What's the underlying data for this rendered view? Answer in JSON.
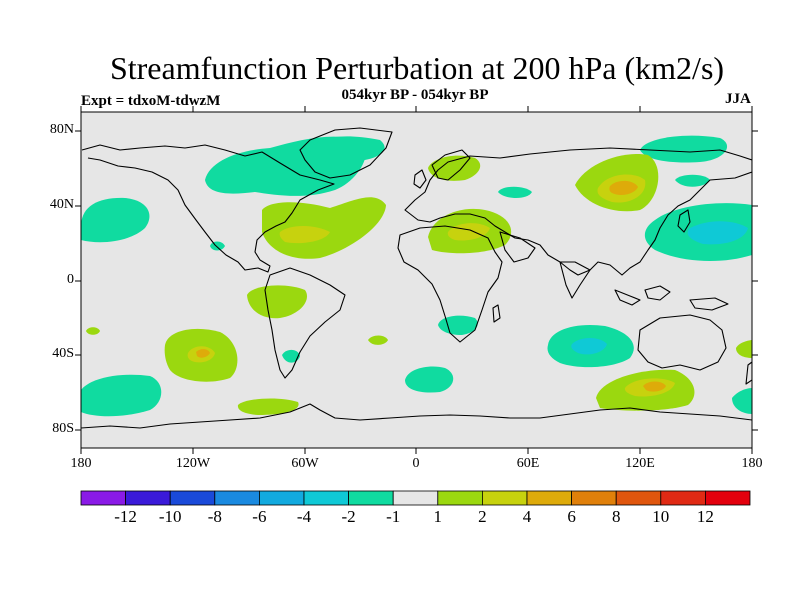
{
  "title": "Streamfunction Perturbation at 200 hPa (km2/s)",
  "subtitle": "054kyr BP - 054kyr BP",
  "experiment": "Expt = tdxoM-tdwzM",
  "season": "JJA",
  "lat_labels": [
    "80N",
    "40N",
    "0",
    "40S",
    "80S"
  ],
  "lon_labels": [
    "180",
    "120W",
    "60W",
    "0",
    "60E",
    "120E",
    "180"
  ],
  "colorbar": {
    "labels": [
      "-12",
      "-10",
      "-8",
      "-6",
      "-4",
      "-2",
      "-1",
      "1",
      "2",
      "4",
      "6",
      "8",
      "10",
      "12"
    ],
    "colors": [
      "#8a1ae6",
      "#3a1ad9",
      "#1a4ad9",
      "#1a8ae0",
      "#12aadf",
      "#0fc9d6",
      "#10dba0",
      "#e6e6e6",
      "#9bd80f",
      "#c7d20e",
      "#deab0a",
      "#e0800a",
      "#e0560e",
      "#e02a14",
      "#e3000d"
    ]
  },
  "colors": {
    "background": "#e6e6e6",
    "anomaly_neg1": "#10dba0",
    "anomaly_neg2": "#0fc9d6",
    "anomaly_neg3": "#12aadf",
    "anomaly_pos1": "#9bd80f",
    "anomaly_pos2": "#c7d20e",
    "anomaly_pos3": "#deab0a"
  }
}
